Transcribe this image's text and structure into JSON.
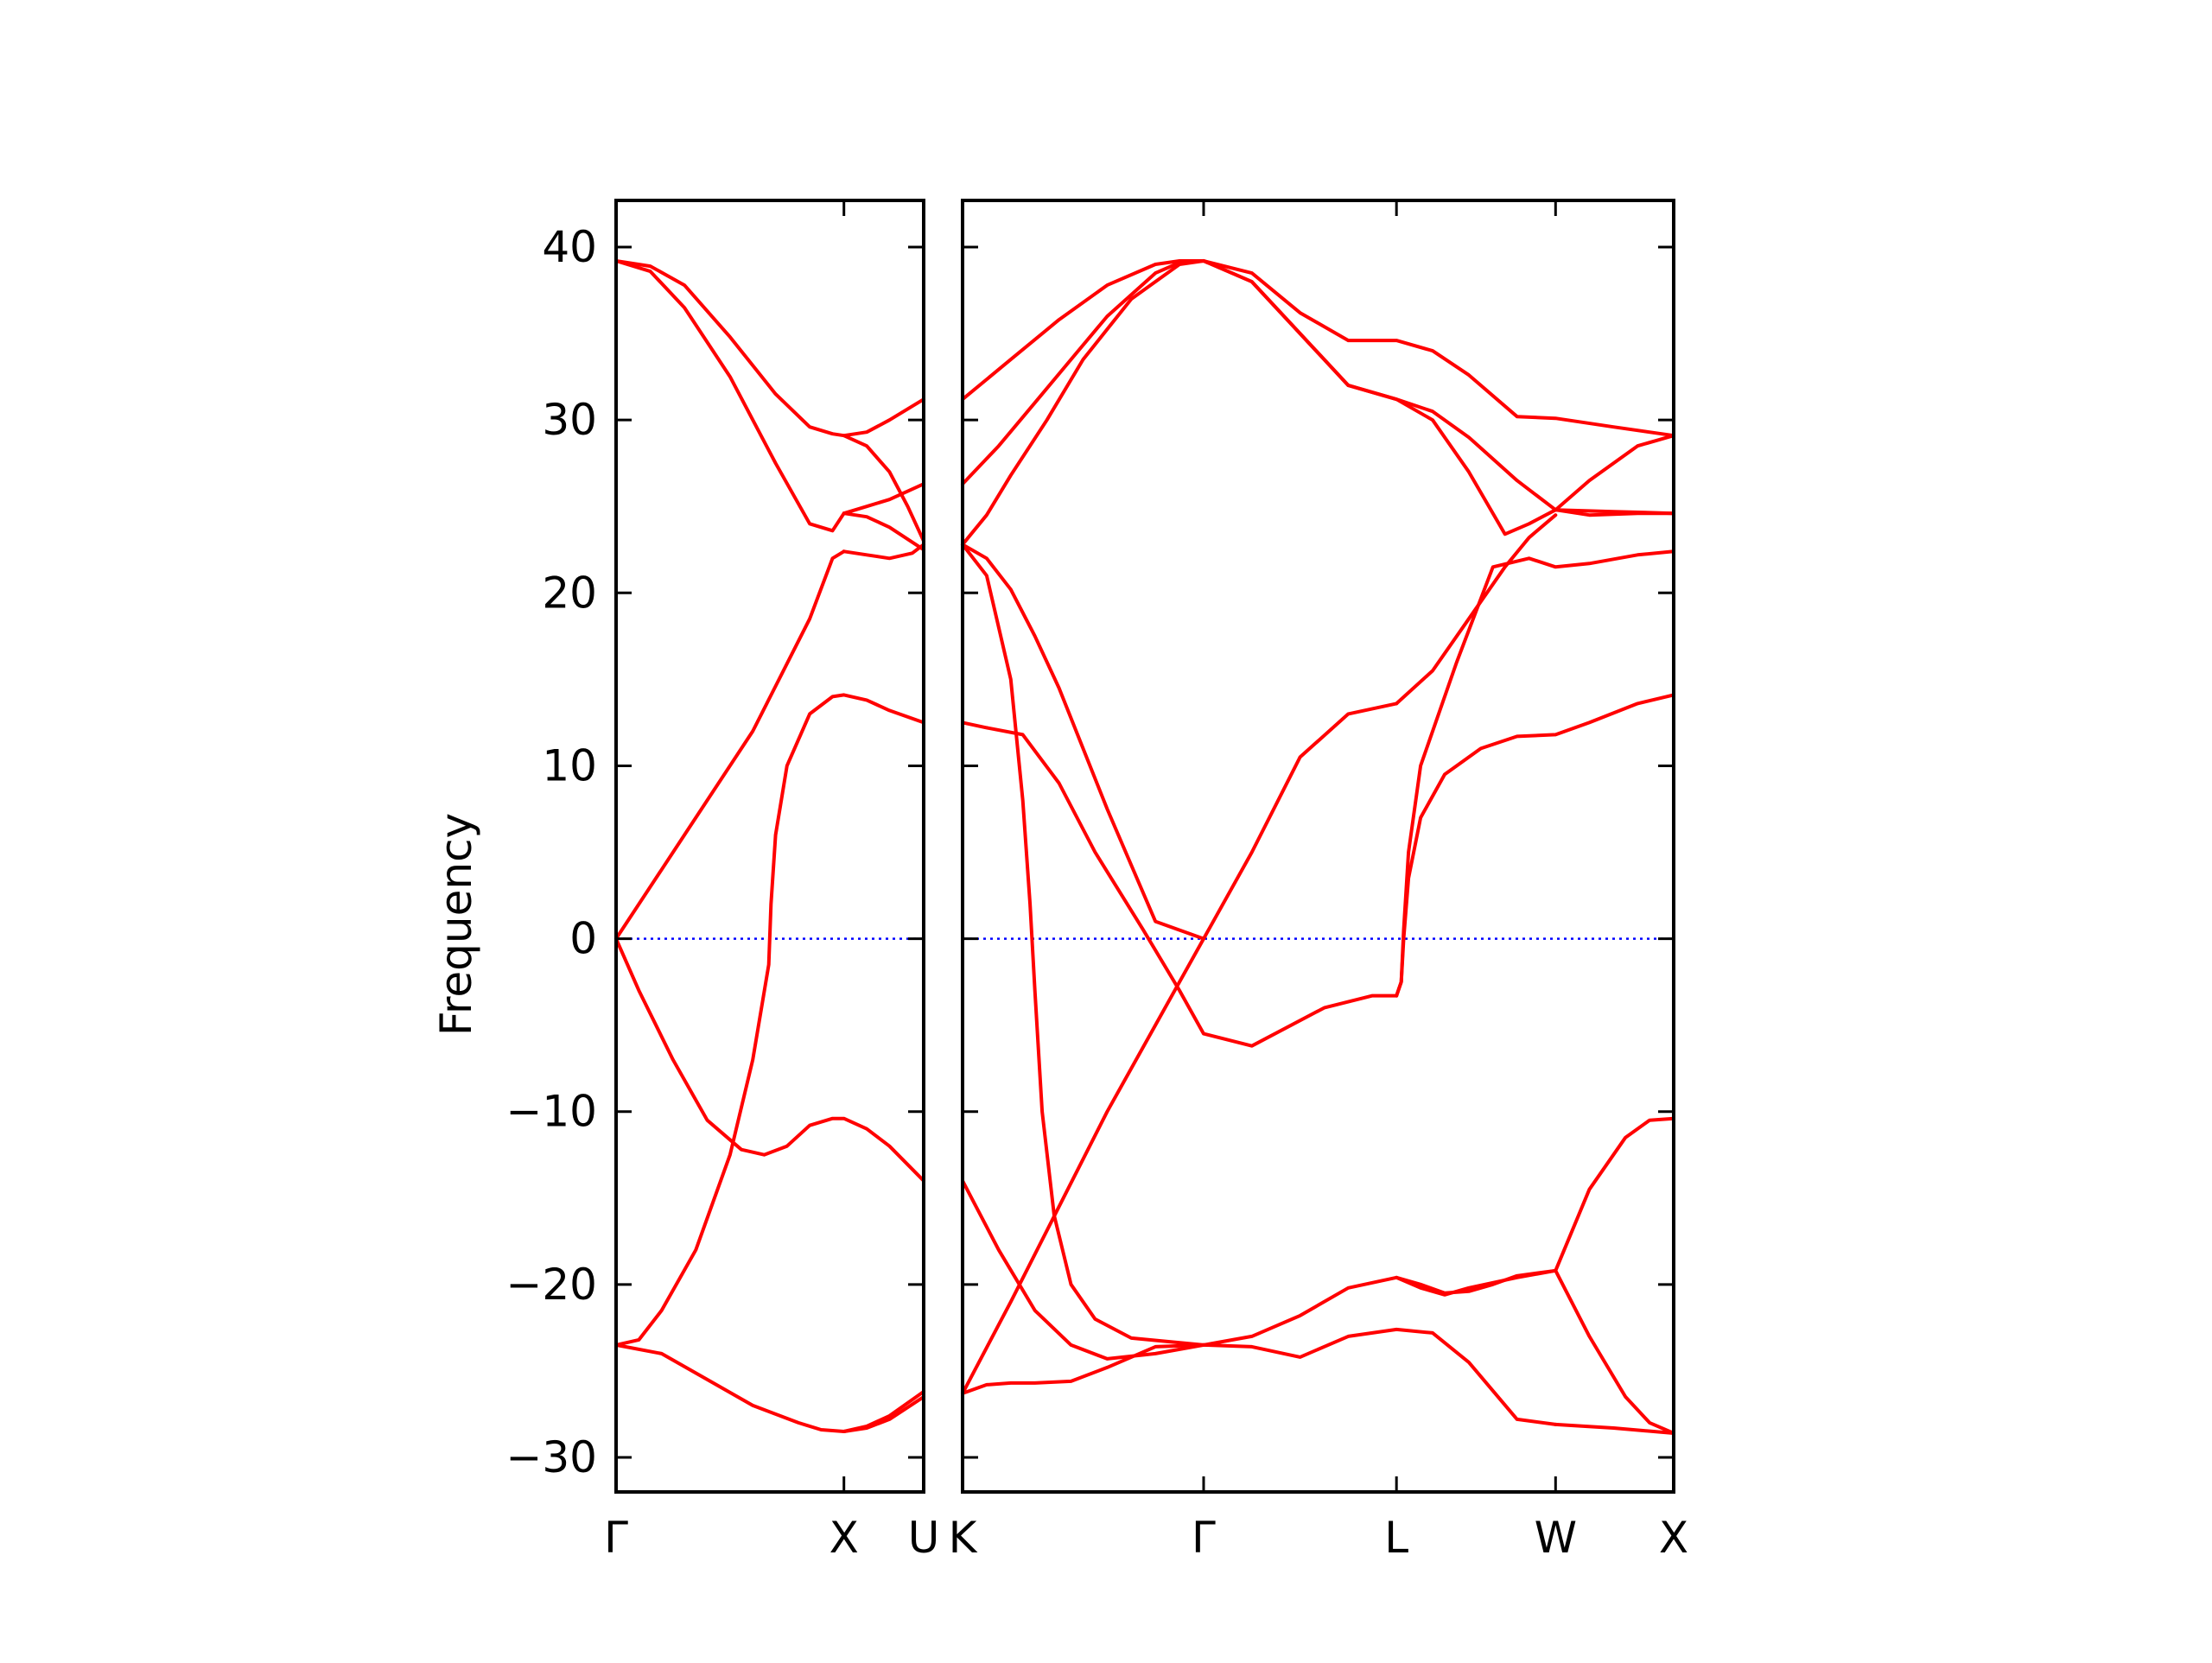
{
  "chart_data": {
    "type": "line",
    "ylabel": "Frequency",
    "ylim": [
      -32,
      42.7
    ],
    "yticks": [
      "40",
      "30",
      "20",
      "10",
      "0",
      "−10",
      "−20",
      "−30"
    ],
    "ytick_values": [
      40,
      30,
      20,
      10,
      0,
      -10,
      -20,
      -30
    ],
    "band_color": "#ff0000",
    "zero_line_color": "#0000ff",
    "grid": false,
    "panels": [
      {
        "name": "panel-gamma-x-u",
        "xlim": [
          0,
          1.35
        ],
        "xticks": [
          {
            "label": "Γ",
            "x": 0
          },
          {
            "label": "X",
            "x": 1.0
          },
          {
            "label": "U",
            "x": 1.35
          }
        ],
        "series": [
          {
            "x": [
              0,
              0.15,
              0.3,
              0.5,
              0.7,
              0.85,
              0.95,
              1.0,
              1.1,
              1.2,
              1.35
            ],
            "y": [
              39.2,
              38.6,
              36.5,
              32.5,
              27.5,
              24.0,
              23.6,
              24.6,
              25.0,
              25.4,
              26.3
            ]
          },
          {
            "x": [
              0,
              0.15,
              0.3,
              0.5,
              0.7,
              0.85,
              0.95,
              1.0,
              1.1,
              1.2,
              1.35
            ],
            "y": [
              39.2,
              38.9,
              37.8,
              34.8,
              31.5,
              29.6,
              29.2,
              29.1,
              29.3,
              30.0,
              31.2
            ]
          },
          {
            "x": [
              1.0,
              1.1,
              1.2,
              1.28,
              1.35
            ],
            "y": [
              29.1,
              28.5,
              27.0,
              25.0,
              23.0
            ]
          },
          {
            "x": [
              1.0,
              1.1,
              1.2,
              1.35
            ],
            "y": [
              24.6,
              24.4,
              23.8,
              22.5
            ]
          },
          {
            "x": [
              0,
              0.3,
              0.6,
              0.85,
              0.95,
              1.0
            ],
            "y": [
              0,
              6.0,
              12.0,
              18.5,
              22.0,
              22.4
            ]
          },
          {
            "x": [
              1.0,
              1.1,
              1.2,
              1.3,
              1.35
            ],
            "y": [
              22.4,
              22.2,
              22.0,
              22.3,
              22.8
            ]
          },
          {
            "x": [
              0,
              0.1,
              0.2,
              0.35,
              0.5,
              0.6,
              0.67,
              0.68,
              0.7,
              0.75,
              0.85,
              0.95,
              1.0,
              1.1,
              1.2,
              1.35
            ],
            "y": [
              -23.5,
              -23.2,
              -21.5,
              -18.0,
              -12.5,
              -7.0,
              -1.5,
              2.0,
              6.0,
              10.0,
              13.0,
              14.0,
              14.1,
              13.8,
              13.2,
              12.5
            ]
          },
          {
            "x": [
              0,
              0.1,
              0.25,
              0.4,
              0.55,
              0.65,
              0.75,
              0.85,
              0.95,
              1.0,
              1.1,
              1.2,
              1.35
            ],
            "y": [
              0,
              -3.0,
              -7.0,
              -10.5,
              -12.2,
              -12.5,
              -12.0,
              -10.8,
              -10.4,
              -10.4,
              -11.0,
              -12.0,
              -14.0
            ]
          },
          {
            "x": [
              0,
              0.2,
              0.4,
              0.6,
              0.8,
              0.9,
              1.0,
              1.1,
              1.2,
              1.35
            ],
            "y": [
              -23.5,
              -24.0,
              -25.5,
              -27.0,
              -28.0,
              -28.4,
              -28.5,
              -28.3,
              -27.8,
              -26.5
            ]
          },
          {
            "x": [
              1.0,
              1.1,
              1.2,
              1.35
            ],
            "y": [
              -28.5,
              -28.2,
              -27.6,
              -26.2
            ]
          }
        ]
      },
      {
        "name": "panel-k-gamma-l-w-x",
        "xlim": [
          0,
          2.95
        ],
        "xticks": [
          {
            "label": "K",
            "x": 0
          },
          {
            "label": "Γ",
            "x": 1.0
          },
          {
            "label": "L",
            "x": 1.8
          },
          {
            "label": "W",
            "x": 2.46
          },
          {
            "label": "X",
            "x": 2.95
          }
        ],
        "series": [
          {
            "x": [
              0,
              0.2,
              0.4,
              0.6,
              0.8,
              0.9,
              1.0
            ],
            "y": [
              31.2,
              33.5,
              35.8,
              37.8,
              39.0,
              39.2,
              39.2
            ]
          },
          {
            "x": [
              0,
              0.15,
              0.3,
              0.45,
              0.6,
              0.8,
              0.9,
              1.0
            ],
            "y": [
              26.3,
              28.5,
              31.0,
              33.5,
              36.0,
              38.5,
              39.1,
              39.2
            ]
          },
          {
            "x": [
              0,
              0.1,
              0.2,
              0.35,
              0.5,
              0.7,
              0.9,
              1.0
            ],
            "y": [
              22.8,
              24.5,
              26.8,
              30.0,
              33.5,
              37.0,
              39.0,
              39.2
            ]
          },
          {
            "x": [
              1.0,
              1.2,
              1.4,
              1.6,
              1.8,
              1.95,
              2.1,
              2.3,
              2.46,
              2.7,
              2.95
            ],
            "y": [
              39.2,
              38.5,
              36.2,
              34.6,
              34.6,
              34.0,
              32.6,
              30.2,
              30.1,
              29.6,
              29.1
            ]
          },
          {
            "x": [
              1.0,
              1.2,
              1.4,
              1.6,
              1.8,
              1.95,
              2.1,
              2.3,
              2.46
            ],
            "y": [
              39.2,
              38.0,
              35.0,
              32.0,
              31.2,
              30.5,
              29.0,
              26.5,
              24.8
            ]
          },
          {
            "x": [
              1.0,
              1.2,
              1.4,
              1.6,
              1.8,
              1.95,
              2.1,
              2.25,
              2.35,
              2.46
            ],
            "y": [
              39.2,
              38.0,
              35.0,
              32.0,
              31.2,
              30.0,
              27.0,
              23.4,
              24.0,
              24.8
            ]
          },
          {
            "x": [
              2.46,
              2.6,
              2.8,
              2.95
            ],
            "y": [
              24.8,
              24.5,
              24.6,
              24.6
            ]
          },
          {
            "x": [
              2.46,
              2.6,
              2.8,
              2.95
            ],
            "y": [
              24.8,
              26.5,
              28.5,
              29.1
            ]
          },
          {
            "x": [
              2.46,
              2.7,
              2.95
            ],
            "y": [
              24.8,
              24.7,
              24.6
            ]
          },
          {
            "x": [
              0,
              0.1,
              0.2,
              0.3,
              0.4,
              0.6,
              0.8,
              1.0,
              1.2,
              1.4,
              1.6,
              1.8
            ],
            "y": [
              22.8,
              22.0,
              20.2,
              17.5,
              14.5,
              7.5,
              1.0,
              0,
              5.0,
              10.5,
              13.0,
              13.6
            ]
          },
          {
            "x": [
              1.8,
              1.95,
              2.1,
              2.25,
              2.35,
              2.46
            ],
            "y": [
              13.6,
              15.5,
              18.5,
              21.5,
              23.2,
              24.5
            ]
          },
          {
            "x": [
              0,
              0.1,
              0.2,
              0.25,
              0.28,
              0.3,
              0.33,
              0.38,
              0.45,
              0.55,
              0.7,
              0.85,
              1.0
            ],
            "y": [
              22.8,
              21.0,
              15.0,
              8.0,
              2.0,
              -3.0,
              -10.0,
              -16.0,
              -20.0,
              -22.0,
              -23.1,
              -23.3,
              -23.5
            ]
          },
          {
            "x": [
              0,
              0.1,
              0.25,
              0.4,
              0.55,
              0.75,
              0.9,
              1.0,
              1.2,
              1.5,
              1.7,
              1.8
            ],
            "y": [
              12.5,
              12.2,
              11.8,
              9.0,
              5.0,
              0.5,
              -3.0,
              -5.5,
              -6.2,
              -4.0,
              -3.3,
              -3.3
            ]
          },
          {
            "x": [
              1.8,
              1.82,
              1.83,
              1.85,
              1.9,
              2.0,
              2.15,
              2.3,
              2.46,
              2.6,
              2.8,
              2.95
            ],
            "y": [
              -3.3,
              -2.5,
              0.0,
              3.5,
              7.0,
              9.5,
              11.0,
              11.7,
              11.8,
              12.5,
              13.6,
              14.1
            ]
          },
          {
            "x": [
              1.8,
              1.82,
              1.83,
              1.85,
              1.9,
              2.05,
              2.2,
              2.35,
              2.46,
              2.6,
              2.8,
              2.95
            ],
            "y": [
              -3.3,
              -2.5,
              0.5,
              5.0,
              10.0,
              16.0,
              21.5,
              22.0,
              21.5,
              21.7,
              22.2,
              22.4
            ]
          },
          {
            "x": [
              0,
              0.2,
              0.4,
              0.6,
              0.8,
              1.0
            ],
            "y": [
              -26.3,
              -21.0,
              -15.5,
              -10.0,
              -5.0,
              0
            ]
          },
          {
            "x": [
              0,
              0.15,
              0.3,
              0.45,
              0.6,
              0.8,
              1.0
            ],
            "y": [
              -14.0,
              -18.0,
              -21.5,
              -23.5,
              -24.3,
              -24.0,
              -23.5
            ]
          },
          {
            "x": [
              0,
              0.1,
              0.2,
              0.3,
              0.45,
              0.6,
              0.8,
              1.0
            ],
            "y": [
              -26.3,
              -25.8,
              -25.7,
              -25.7,
              -25.6,
              -24.8,
              -23.6,
              -23.5
            ]
          },
          {
            "x": [
              1.0,
              1.2,
              1.4,
              1.6,
              1.8,
              1.95,
              2.1,
              2.3,
              2.46
            ],
            "y": [
              -23.5,
              -23.6,
              -24.2,
              -23.0,
              -22.6,
              -22.8,
              -24.5,
              -27.8,
              -28.1
            ]
          },
          {
            "x": [
              2.46,
              2.7,
              2.95
            ],
            "y": [
              -28.1,
              -28.3,
              -28.6
            ]
          },
          {
            "x": [
              1.0,
              1.2,
              1.4,
              1.6,
              1.8,
              1.9,
              2.0,
              2.1,
              2.2,
              2.3,
              2.46
            ],
            "y": [
              -23.5,
              -23.0,
              -21.8,
              -20.2,
              -19.6,
              -20.0,
              -20.5,
              -20.4,
              -20.0,
              -19.5,
              -19.2
            ]
          },
          {
            "x": [
              1.8,
              1.9,
              2.0,
              2.1,
              2.2,
              2.3,
              2.46
            ],
            "y": [
              -19.6,
              -20.2,
              -20.6,
              -20.2,
              -19.9,
              -19.6,
              -19.2
            ]
          },
          {
            "x": [
              2.46,
              2.6,
              2.75,
              2.85,
              2.95
            ],
            "y": [
              -19.2,
              -14.5,
              -11.5,
              -10.5,
              -10.4
            ]
          },
          {
            "x": [
              2.46,
              2.6,
              2.75,
              2.85,
              2.95
            ],
            "y": [
              -19.2,
              -23.0,
              -26.5,
              -28.0,
              -28.6
            ]
          }
        ]
      }
    ]
  }
}
